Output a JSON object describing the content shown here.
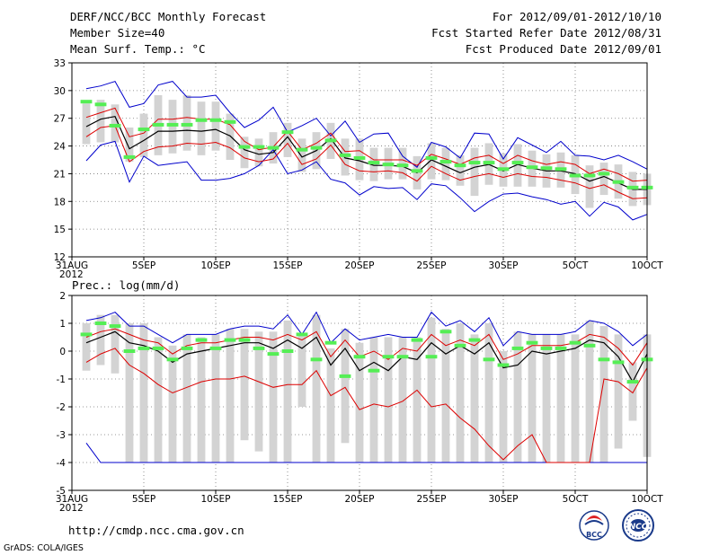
{
  "header": {
    "title": "DERF/NCC/BCC Monthly Forecast",
    "member_size": "Member Size=40",
    "variable": "Mean Surf. Temp.: °C",
    "period": "For 2012/09/01-2012/10/10",
    "started": "Fcst Started Refer Date 2012/08/31",
    "produced": "Fcst Produced Date 2012/09/01"
  },
  "footer": {
    "url": "http://cmdp.ncc.cma.gov.cn",
    "grads": "GrADS: COLA/IGES",
    "logo1": "BCC",
    "logo2": "NCC"
  },
  "colors": {
    "envelope": "#0000cc",
    "spread": "#dd0000",
    "mean": "#000000",
    "member": "#55ee55",
    "box": "#d3d3d3",
    "grid": "#777777"
  },
  "chart_data": [
    {
      "type": "box",
      "title": "Mean Surf. Temp.: °C",
      "ylim": [
        12,
        33
      ],
      "yticks": [
        12,
        15,
        18,
        21,
        24,
        27,
        30,
        33
      ],
      "x_range": [
        0,
        40
      ],
      "xtick_positions": [
        0,
        5,
        10,
        15,
        20,
        25,
        30,
        35,
        40
      ],
      "xtick_labels": [
        "31AUG",
        "5SEP",
        "10SEP",
        "15SEP",
        "20SEP",
        "25SEP",
        "30SEP",
        "5OCT",
        "10OCT"
      ],
      "xtick_year": "2012",
      "x": [
        1,
        2,
        3,
        4,
        5,
        6,
        7,
        8,
        9,
        10,
        11,
        12,
        13,
        14,
        15,
        16,
        17,
        18,
        19,
        20,
        21,
        22,
        23,
        24,
        25,
        26,
        27,
        28,
        29,
        30,
        31,
        32,
        33,
        34,
        35,
        36,
        37,
        38,
        39,
        40
      ],
      "series": [
        {
          "name": "max",
          "values": [
            30.2,
            30.5,
            31.0,
            28.2,
            28.6,
            30.6,
            31.0,
            29.3,
            29.3,
            29.5,
            27.6,
            26.0,
            26.8,
            28.2,
            25.5,
            26.2,
            27.0,
            25.1,
            26.7,
            24.4,
            25.3,
            25.4,
            22.9,
            21.7,
            24.4,
            23.9,
            22.7,
            25.4,
            25.3,
            22.6,
            24.9,
            24.1,
            23.3,
            24.5,
            23.0,
            22.9,
            22.5,
            23.0,
            22.3,
            21.5
          ]
        },
        {
          "name": "min",
          "values": [
            22.4,
            24.1,
            24.5,
            20.1,
            22.9,
            21.9,
            22.1,
            22.3,
            20.3,
            20.3,
            20.5,
            21.0,
            21.9,
            23.6,
            21.0,
            21.4,
            22.3,
            20.4,
            20.0,
            18.7,
            19.6,
            19.4,
            19.5,
            18.2,
            19.9,
            19.7,
            18.4,
            16.9,
            18.0,
            18.8,
            18.9,
            18.5,
            18.2,
            17.7,
            18.0,
            16.4,
            17.9,
            17.4,
            16.0,
            16.6
          ]
        },
        {
          "name": "upper",
          "values": [
            27.1,
            27.6,
            28.1,
            25.0,
            25.4,
            26.9,
            26.9,
            27.1,
            26.9,
            26.9,
            26.3,
            24.5,
            23.6,
            23.9,
            25.6,
            23.6,
            24.3,
            25.4,
            23.4,
            23.5,
            22.5,
            22.5,
            22.5,
            21.9,
            23.1,
            22.6,
            22.0,
            22.7,
            23.0,
            22.1,
            23.0,
            22.4,
            22.0,
            22.3,
            22.0,
            21.0,
            21.5,
            21.0,
            20.2,
            20.3
          ]
        },
        {
          "name": "lower",
          "values": [
            25.0,
            26.0,
            26.2,
            22.3,
            23.4,
            23.9,
            24.0,
            24.3,
            24.2,
            24.4,
            23.8,
            22.7,
            22.3,
            22.6,
            24.3,
            22.0,
            22.6,
            24.1,
            22.0,
            21.3,
            21.2,
            21.3,
            21.1,
            20.2,
            21.8,
            21.0,
            20.3,
            20.7,
            21.0,
            20.6,
            21.0,
            20.7,
            20.6,
            20.3,
            20.0,
            19.4,
            19.8,
            19.0,
            18.3,
            18.4
          ]
        },
        {
          "name": "mean",
          "values": [
            26.1,
            26.9,
            27.2,
            23.7,
            24.6,
            25.6,
            25.6,
            25.7,
            25.6,
            25.8,
            25.1,
            23.6,
            23.1,
            23.3,
            25.0,
            22.8,
            23.5,
            24.8,
            22.7,
            22.4,
            21.9,
            21.9,
            21.8,
            21.1,
            22.5,
            21.8,
            21.1,
            21.7,
            22.0,
            21.3,
            22.0,
            21.6,
            21.3,
            21.3,
            21.0,
            20.2,
            20.7,
            20.0,
            19.3,
            19.3
          ]
        },
        {
          "name": "box_high",
          "values": [
            28.6,
            29.0,
            28.5,
            26.0,
            27.5,
            29.5,
            29.0,
            29.5,
            28.8,
            28.8,
            27.5,
            25.0,
            24.8,
            25.5,
            26.5,
            24.8,
            25.5,
            26.5,
            24.8,
            24.8,
            23.8,
            23.8,
            23.8,
            22.9,
            24.3,
            23.8,
            23.0,
            23.8,
            24.3,
            23.2,
            24.2,
            23.5,
            23.1,
            23.3,
            23.0,
            21.9,
            22.2,
            22.0,
            21.2,
            21.0
          ]
        },
        {
          "name": "box_low",
          "values": [
            24.2,
            24.4,
            24.4,
            22.3,
            22.8,
            23.0,
            23.2,
            23.5,
            23.0,
            23.5,
            22.5,
            21.6,
            21.8,
            22.1,
            22.8,
            21.2,
            21.5,
            22.6,
            20.8,
            20.3,
            20.2,
            20.4,
            20.4,
            19.3,
            20.4,
            20.3,
            19.7,
            18.6,
            19.8,
            19.6,
            19.6,
            19.6,
            19.5,
            19.5,
            18.8,
            17.3,
            18.7,
            18.3,
            17.5,
            17.6
          ]
        },
        {
          "name": "member_highlight",
          "values": [
            28.8,
            28.5,
            26.2,
            22.8,
            25.8,
            26.3,
            26.3,
            26.3,
            26.8,
            26.8,
            26.6,
            23.9,
            23.9,
            23.8,
            25.5,
            23.6,
            23.8,
            24.6,
            23.0,
            22.7,
            22.2,
            22.0,
            21.9,
            21.3,
            22.7,
            22.3,
            21.9,
            22.2,
            22.2,
            21.5,
            22.2,
            21.7,
            21.6,
            21.5,
            20.8,
            20.8,
            21.0,
            20.1,
            19.5,
            19.5
          ]
        }
      ]
    },
    {
      "type": "box",
      "title": "Prec.: log(mm/d)",
      "ylim": [
        -5,
        2
      ],
      "yticks": [
        -5,
        -4,
        -3,
        -2,
        -1,
        0,
        1,
        2
      ],
      "x_range": [
        0,
        40
      ],
      "xtick_positions": [
        0,
        5,
        10,
        15,
        20,
        25,
        30,
        35,
        40
      ],
      "xtick_labels": [
        "31AUG",
        "5SEP",
        "10SEP",
        "15SEP",
        "20SEP",
        "25SEP",
        "30SEP",
        "5OCT",
        "10OCT"
      ],
      "xtick_year": "2012",
      "x": [
        1,
        2,
        3,
        4,
        5,
        6,
        7,
        8,
        9,
        10,
        11,
        12,
        13,
        14,
        15,
        16,
        17,
        18,
        19,
        20,
        21,
        22,
        23,
        24,
        25,
        26,
        27,
        28,
        29,
        30,
        31,
        32,
        33,
        34,
        35,
        36,
        37,
        38,
        39,
        40
      ],
      "series": [
        {
          "name": "max",
          "values": [
            1.1,
            1.2,
            1.4,
            0.9,
            0.9,
            0.6,
            0.3,
            0.6,
            0.6,
            0.6,
            0.8,
            0.9,
            0.9,
            0.8,
            1.3,
            0.6,
            1.4,
            0.3,
            0.8,
            0.4,
            0.5,
            0.6,
            0.5,
            0.5,
            1.4,
            0.9,
            1.1,
            0.7,
            1.2,
            0.2,
            0.7,
            0.6,
            0.6,
            0.6,
            0.7,
            1.1,
            1.0,
            0.7,
            0.2,
            0.6
          ]
        },
        {
          "name": "min",
          "values": [
            -3.3,
            -4.0,
            -4.0,
            -4.0,
            -4.0,
            -4.0,
            -4.0,
            -4.0,
            -4.0,
            -4.0,
            -4.0,
            -4.0,
            -4.0,
            -4.0,
            -4.0,
            -4.0,
            -4.0,
            -4.0,
            -4.0,
            -4.0,
            -4.0,
            -4.0,
            -4.0,
            -4.0,
            -4.0,
            -4.0,
            -4.0,
            -4.0,
            -4.0,
            -4.0,
            -4.0,
            -4.0,
            -4.0,
            -4.0,
            -4.0,
            -4.0,
            -4.0,
            -4.0,
            -4.0,
            -4.0
          ]
        },
        {
          "name": "upper",
          "values": [
            0.5,
            0.7,
            0.8,
            0.6,
            0.4,
            0.3,
            -0.1,
            0.2,
            0.3,
            0.3,
            0.4,
            0.5,
            0.5,
            0.4,
            0.6,
            0.4,
            0.7,
            -0.2,
            0.4,
            -0.2,
            0.0,
            -0.3,
            0.1,
            0.0,
            0.6,
            0.2,
            0.4,
            0.2,
            0.6,
            -0.3,
            -0.1,
            0.2,
            0.2,
            0.2,
            0.3,
            0.6,
            0.5,
            0.1,
            -0.5,
            0.3
          ]
        },
        {
          "name": "lower",
          "values": [
            -0.4,
            -0.1,
            0.1,
            -0.5,
            -0.8,
            -1.2,
            -1.5,
            -1.3,
            -1.1,
            -1.0,
            -1.0,
            -0.9,
            -1.1,
            -1.3,
            -1.2,
            -1.2,
            -0.7,
            -1.6,
            -1.3,
            -2.1,
            -1.9,
            -2.0,
            -1.8,
            -1.4,
            -2.0,
            -1.9,
            -2.4,
            -2.8,
            -3.4,
            -3.9,
            -3.4,
            -3.0,
            -4.0,
            -4.0,
            -4.0,
            -4.0,
            -1.0,
            -1.1,
            -1.5,
            -0.6
          ]
        },
        {
          "name": "mean",
          "values": [
            0.3,
            0.5,
            0.7,
            0.3,
            0.2,
            0.0,
            -0.4,
            -0.1,
            0.0,
            0.1,
            0.2,
            0.3,
            0.3,
            0.1,
            0.4,
            0.1,
            0.5,
            -0.5,
            0.1,
            -0.7,
            -0.4,
            -0.7,
            -0.2,
            -0.3,
            0.3,
            -0.1,
            0.2,
            -0.1,
            0.3,
            -0.6,
            -0.5,
            0.0,
            -0.1,
            0.0,
            0.1,
            0.4,
            0.3,
            -0.2,
            -1.1,
            -0.1
          ]
        },
        {
          "name": "box_high",
          "values": [
            1.0,
            1.3,
            1.3,
            1.0,
            1.0,
            0.5,
            0.2,
            0.6,
            0.5,
            0.6,
            0.8,
            0.8,
            0.7,
            0.7,
            1.1,
            0.6,
            1.3,
            0.1,
            0.8,
            0.3,
            0.5,
            0.5,
            0.5,
            0.5,
            1.2,
            0.8,
            1.0,
            0.6,
            1.0,
            0.0,
            0.7,
            0.6,
            0.6,
            0.6,
            0.6,
            1.1,
            0.9,
            0.6,
            -0.4,
            0.6
          ]
        },
        {
          "name": "box_low",
          "values": [
            -0.7,
            -0.5,
            -0.8,
            -4.0,
            -4.0,
            -4.0,
            -4.0,
            -4.0,
            -4.0,
            -4.0,
            -4.0,
            -3.2,
            -3.6,
            -4.0,
            -4.0,
            -2.0,
            -4.0,
            -4.0,
            -3.3,
            -4.0,
            -4.0,
            -4.0,
            -4.0,
            -4.0,
            -4.0,
            -4.0,
            -4.0,
            -4.0,
            -4.0,
            -4.0,
            -4.0,
            -4.0,
            -4.0,
            -4.0,
            -4.0,
            -4.0,
            -4.0,
            -3.5,
            -2.5,
            -3.8
          ]
        },
        {
          "name": "member_highlight",
          "values": [
            0.6,
            1.0,
            0.9,
            0.0,
            0.1,
            0.1,
            -0.3,
            0.1,
            0.4,
            0.1,
            0.4,
            0.4,
            0.1,
            -0.1,
            0.0,
            0.6,
            -0.3,
            0.3,
            -0.9,
            -0.2,
            -0.7,
            -0.2,
            -0.2,
            0.4,
            -0.2,
            0.7,
            0.2,
            0.4,
            -0.3,
            -0.5,
            0.1,
            0.3,
            0.1,
            0.1,
            0.3,
            0.2,
            -0.3,
            -0.4,
            -1.1,
            -0.3
          ]
        }
      ]
    }
  ]
}
